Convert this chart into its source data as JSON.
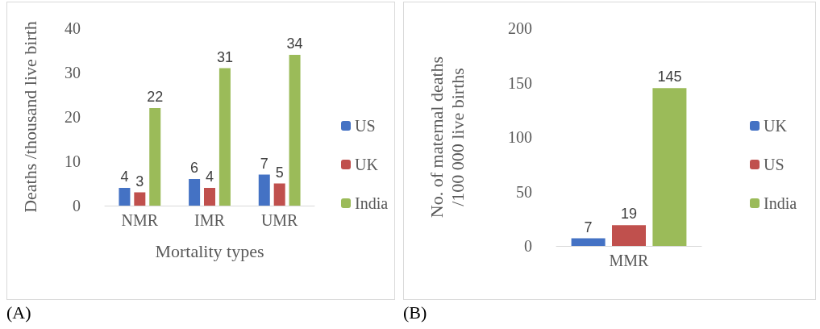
{
  "chart_data": [
    {
      "type": "bar",
      "categories": [
        "NMR",
        "IMR",
        "UMR"
      ],
      "ylabel": "Deaths /thousand live birth",
      "xlabel": "Mortality types",
      "ylim": [
        0,
        40
      ],
      "yticks": [
        0,
        10,
        20,
        30,
        40
      ],
      "grid": false,
      "legend": "right",
      "data_labels": true,
      "annotations": [
        "(A)"
      ],
      "series": [
        {
          "name": "US",
          "color": "#4472c4",
          "values": [
            4,
            6,
            7
          ]
        },
        {
          "name": "UK",
          "color": "#c0504d",
          "values": [
            3,
            4,
            5
          ]
        },
        {
          "name": "India",
          "color": "#9bbb59",
          "values": [
            22,
            31,
            34
          ]
        }
      ]
    },
    {
      "type": "bar",
      "categories": [
        "MMR"
      ],
      "ylabel": "No. of maternal deaths\n/100 000 live births",
      "ylim": [
        0,
        200
      ],
      "yticks": [
        0,
        50,
        100,
        150,
        200
      ],
      "grid": false,
      "legend": "right",
      "data_labels": true,
      "annotations": [
        "(B)"
      ],
      "series": [
        {
          "name": "UK",
          "color": "#4472c4",
          "values": [
            7
          ]
        },
        {
          "name": "US",
          "color": "#c0504d",
          "values": [
            19
          ]
        },
        {
          "name": "India",
          "color": "#9bbb59",
          "values": [
            145
          ]
        }
      ]
    }
  ]
}
